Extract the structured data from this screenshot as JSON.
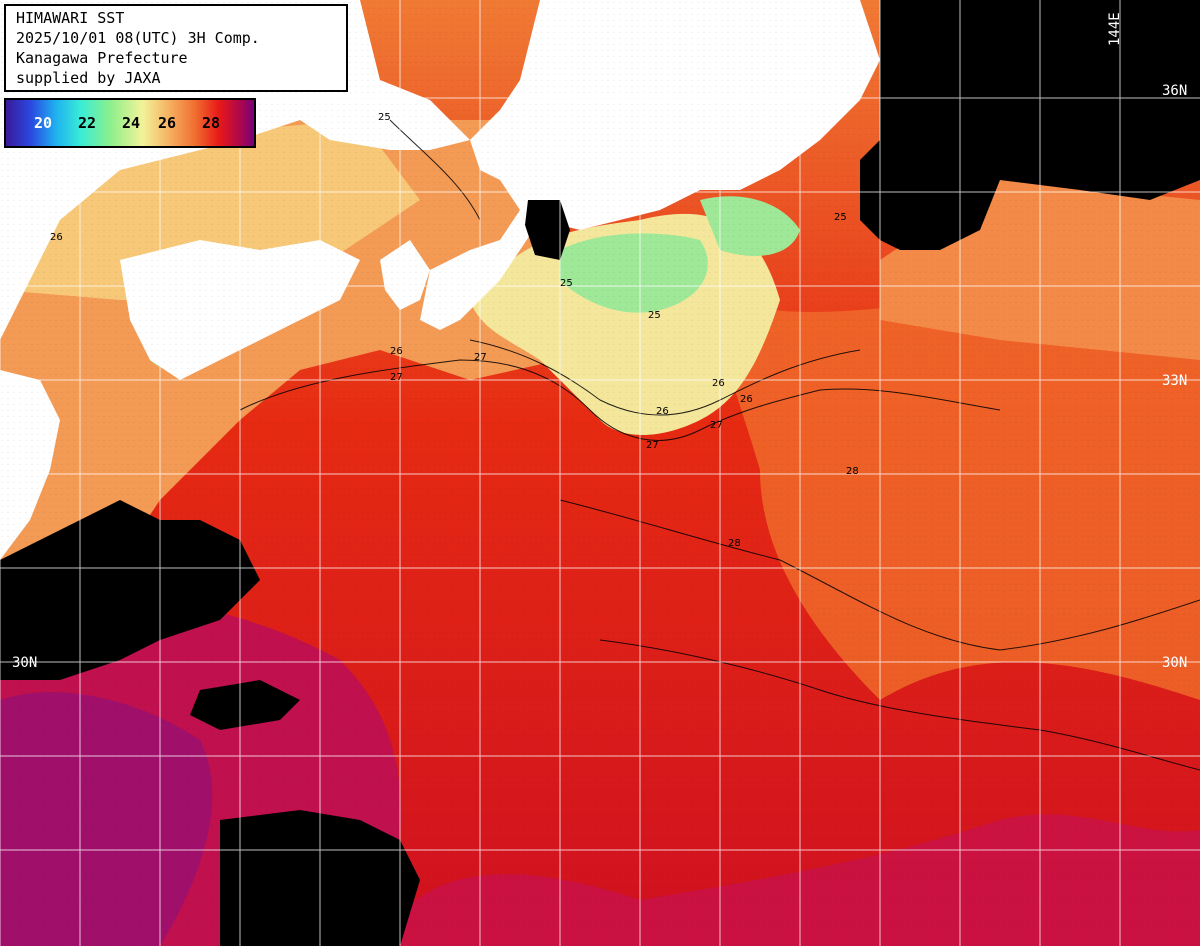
{
  "header": {
    "line1": "HIMAWARI SST",
    "line2": "2025/10/01 08(UTC) 3H Comp.",
    "line3": "Kanagawa Prefecture",
    "line4": "supplied by JAXA"
  },
  "legend": {
    "ticks": [
      "20",
      "22",
      "24",
      "26",
      "28"
    ]
  },
  "grid_labels": {
    "lat_36": "36N",
    "lat_33": "33N",
    "lat_30_left": "30N",
    "lat_30_right": "30N",
    "lon_144": "144E"
  },
  "contour_labels": [
    "25",
    "25",
    "25",
    "26",
    "26",
    "26",
    "26",
    "27",
    "27",
    "27",
    "27",
    "28",
    "28",
    "26",
    "25"
  ],
  "colors": {
    "land": "#ffffff",
    "cloud_mask": "#000000",
    "warm_sea": "#e81818",
    "hot_sea": "#b0084a",
    "cool_sea": "#f2f29a",
    "orange_sea": "#f07030"
  }
}
